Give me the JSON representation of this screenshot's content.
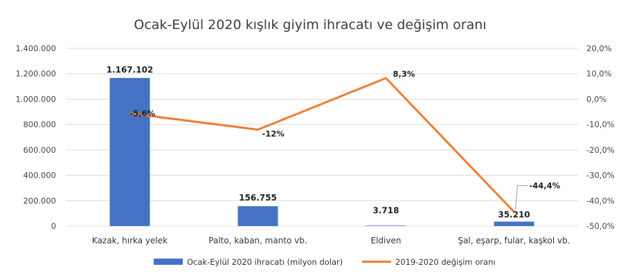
{
  "chart_data": {
    "type": "bar",
    "title": "Ocak-Eylül 2020 kışlık giyim ihracatı ve değişim oranı",
    "categories": [
      "Kazak, hırka yelek",
      "Palto, kaban, manto vb.",
      "Eldiven",
      "Şal, eşarp, fular, kaşkol vb."
    ],
    "series": [
      {
        "name": "Ocak-Eylül 2020 ihracatı (milyon dolar)",
        "type": "bar",
        "axis": "left",
        "color": "#4472c4",
        "values": [
          1167102,
          156755,
          3718,
          35210
        ],
        "labels": [
          "1.167.102",
          "156.755",
          "3.718",
          "35.210"
        ]
      },
      {
        "name": "2019-2020 değişim oranı",
        "type": "line",
        "axis": "right",
        "color": "#ed7d31",
        "values": [
          -5.6,
          -12,
          8.3,
          -44.4
        ],
        "labels": [
          "-5,6%",
          "-12%",
          "8,3%",
          "-44,4%"
        ]
      }
    ],
    "y_left": {
      "min": 0,
      "max": 1400000,
      "ticks": [
        0,
        200000,
        400000,
        600000,
        800000,
        1000000,
        1200000,
        1400000
      ],
      "tick_labels": [
        "0",
        "200.000",
        "400.000",
        "600.000",
        "800.000",
        "1.000.000",
        "1.200.000",
        "1.400.000"
      ]
    },
    "y_right": {
      "min": -50,
      "max": 20,
      "ticks": [
        -50,
        -40,
        -30,
        -20,
        -10,
        0,
        10,
        20
      ],
      "tick_labels": [
        "-50,0%",
        "-40,0%",
        "-30,0%",
        "-20,0%",
        "-10,0%",
        "0,0%",
        "10,0%",
        "20,0%"
      ]
    },
    "grid": true,
    "legend_position": "bottom"
  }
}
